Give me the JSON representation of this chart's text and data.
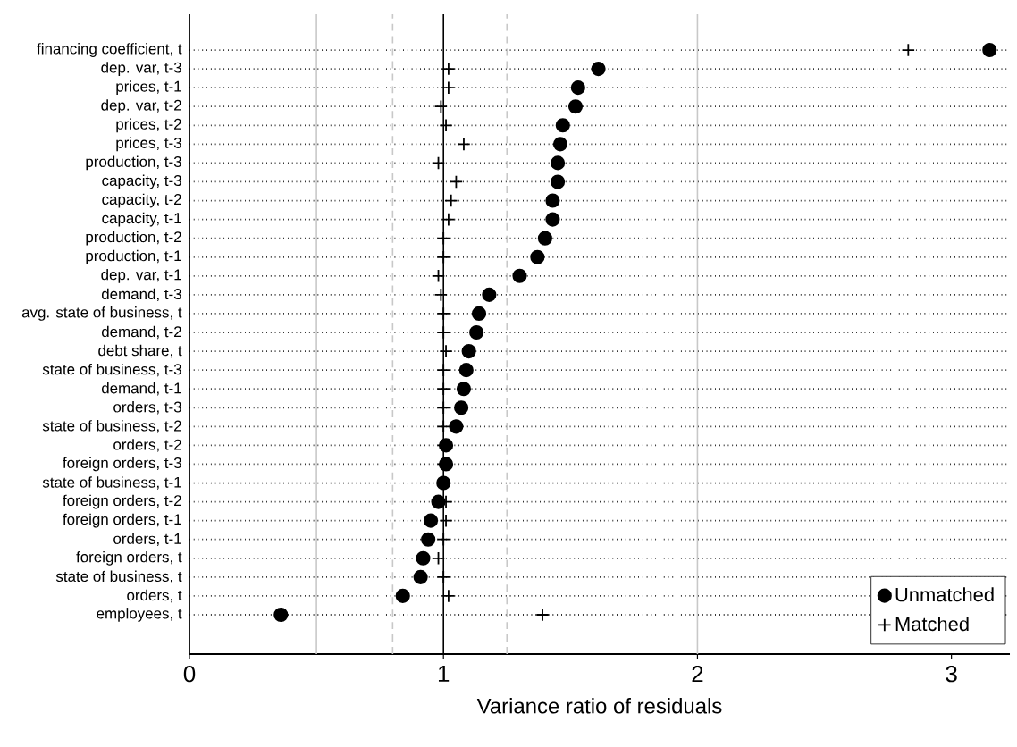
{
  "chart_data": {
    "type": "scatter",
    "xlabel": "Variance ratio of residuals",
    "categories": [
      "financing coefficient, t",
      "dep. var, t-3",
      "prices, t-1",
      "dep. var, t-2",
      "prices, t-2",
      "prices, t-3",
      "production, t-3",
      "capacity, t-3",
      "capacity, t-2",
      "capacity, t-1",
      "production, t-2",
      "production, t-1",
      "dep. var, t-1",
      "demand, t-3",
      "avg. state of business, t",
      "demand, t-2",
      "debt share, t",
      "state of business, t-3",
      "demand, t-1",
      "orders, t-3",
      "state of business, t-2",
      "orders, t-2",
      "foreign orders, t-3",
      "state of business, t-1",
      "foreign orders, t-2",
      "foreign orders, t-1",
      "orders, t-1",
      "foreign orders, t",
      "state of business, t",
      "orders, t",
      "employees, t"
    ],
    "series": [
      {
        "name": "Unmatched",
        "color": "#000000",
        "marker": "circle",
        "values": [
          3.15,
          1.61,
          1.53,
          1.52,
          1.47,
          1.46,
          1.45,
          1.45,
          1.43,
          1.43,
          1.4,
          1.37,
          1.3,
          1.18,
          1.14,
          1.13,
          1.1,
          1.09,
          1.08,
          1.07,
          1.05,
          1.01,
          1.01,
          1.0,
          0.98,
          0.95,
          0.94,
          0.92,
          0.91,
          0.84,
          0.36
        ]
      },
      {
        "name": "Matched",
        "color": "#000000",
        "marker": "cross",
        "values": [
          2.83,
          1.02,
          1.02,
          0.99,
          1.01,
          1.08,
          0.98,
          1.05,
          1.03,
          1.02,
          1.0,
          1.0,
          0.98,
          0.99,
          1.0,
          1.0,
          1.01,
          1.0,
          1.0,
          1.0,
          1.0,
          1.0,
          1.0,
          null,
          1.01,
          1.01,
          1.0,
          0.98,
          1.0,
          1.02,
          1.39
        ]
      }
    ],
    "orientation": "horizontal",
    "xlim": [
      0,
      3.23
    ],
    "xticks": [
      0,
      1,
      2,
      3
    ],
    "grid": "y",
    "legend": "bottom right",
    "ref_lines": [
      {
        "axis": "x",
        "value": 0.5,
        "color": "#c8c8c8",
        "line_style": "solid"
      },
      {
        "axis": "x",
        "value": 0.8,
        "color": "#c8c8c8",
        "line_style": "dashed"
      },
      {
        "axis": "x",
        "value": 1,
        "color": "#000000",
        "line_style": "solid"
      },
      {
        "axis": "x",
        "value": 1.25,
        "color": "#c8c8c8",
        "line_style": "dashed"
      },
      {
        "axis": "x",
        "value": 2,
        "color": "#c8c8c8",
        "line_style": "solid"
      }
    ]
  }
}
